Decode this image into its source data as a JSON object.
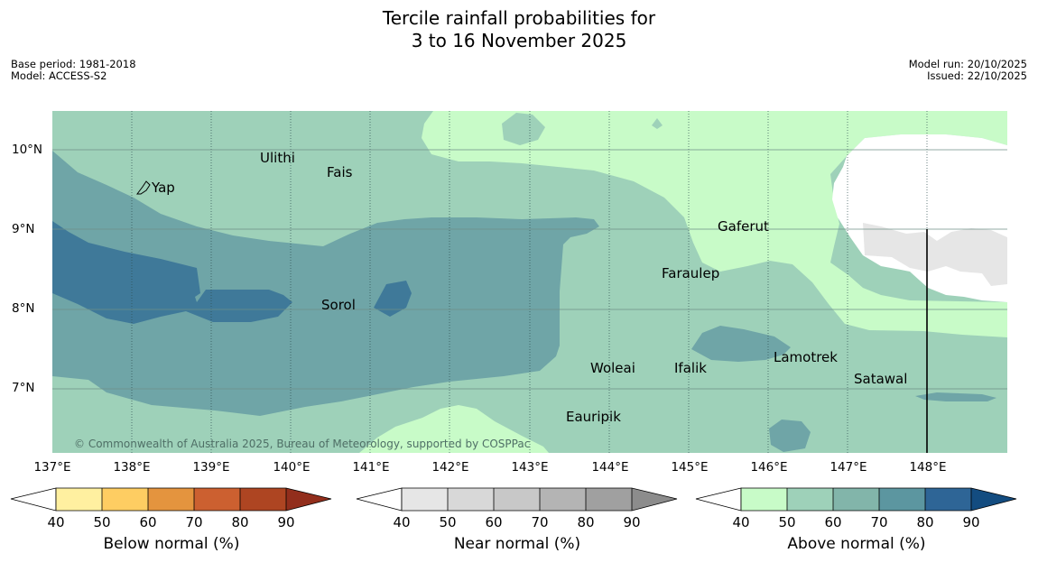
{
  "title": {
    "line1": "Tercile rainfall probabilities for",
    "line2": "3 to 16 November 2025"
  },
  "meta": {
    "base_period": "Base period: 1981-2018",
    "model": "Model: ACCESS-S2",
    "model_run": "Model run: 20/10/2025",
    "issued": "Issued: 22/10/2025"
  },
  "map": {
    "copyright": "© Commonwealth of Australia 2025, Bureau of Meteorology, supported by COSPPac",
    "lat_labels": [
      "10°N",
      "9°N",
      "8°N",
      "7°N"
    ],
    "lon_labels": [
      "137°E",
      "138°E",
      "139°E",
      "140°E",
      "141°E",
      "142°E",
      "143°E",
      "144°E",
      "145°E",
      "146°E",
      "147°E",
      "148°E"
    ],
    "places": [
      "Ulithi",
      "Fais",
      "Yap",
      "Gaferut",
      "Faraulep",
      "Sorol",
      "Woleai",
      "Ifalik",
      "Lamotrek",
      "Satawal",
      "Eauripik"
    ],
    "colors": {
      "above_50": "#9ed1b9",
      "above_60": "#6fa5a7",
      "above_70": "#5f98a3",
      "above_80": "#3f7999",
      "light_green": "#c8fbc8",
      "near_normal": "#e6e6e6",
      "no_signal": "#ffffff"
    }
  },
  "colorbars": [
    {
      "label": "Below normal (%)",
      "ticks": [
        "40",
        "50",
        "60",
        "70",
        "80",
        "90"
      ],
      "colors": [
        "#ffffff",
        "#fff0a0",
        "#fecd62",
        "#e4943e",
        "#cc6030",
        "#ae4522",
        "#922e1c"
      ]
    },
    {
      "label": "Near normal (%)",
      "ticks": [
        "40",
        "50",
        "60",
        "70",
        "80",
        "90"
      ],
      "colors": [
        "#ffffff",
        "#e6e6e6",
        "#d8d8d8",
        "#c8c8c8",
        "#b4b4b4",
        "#a0a0a0",
        "#8c8c8c"
      ]
    },
    {
      "label": "Above normal (%)",
      "ticks": [
        "40",
        "50",
        "60",
        "70",
        "80",
        "90"
      ],
      "colors": [
        "#ffffff",
        "#c8fbc8",
        "#9ed1b9",
        "#82b5aa",
        "#5c96a0",
        "#2e6596",
        "#134c80"
      ]
    }
  ]
}
